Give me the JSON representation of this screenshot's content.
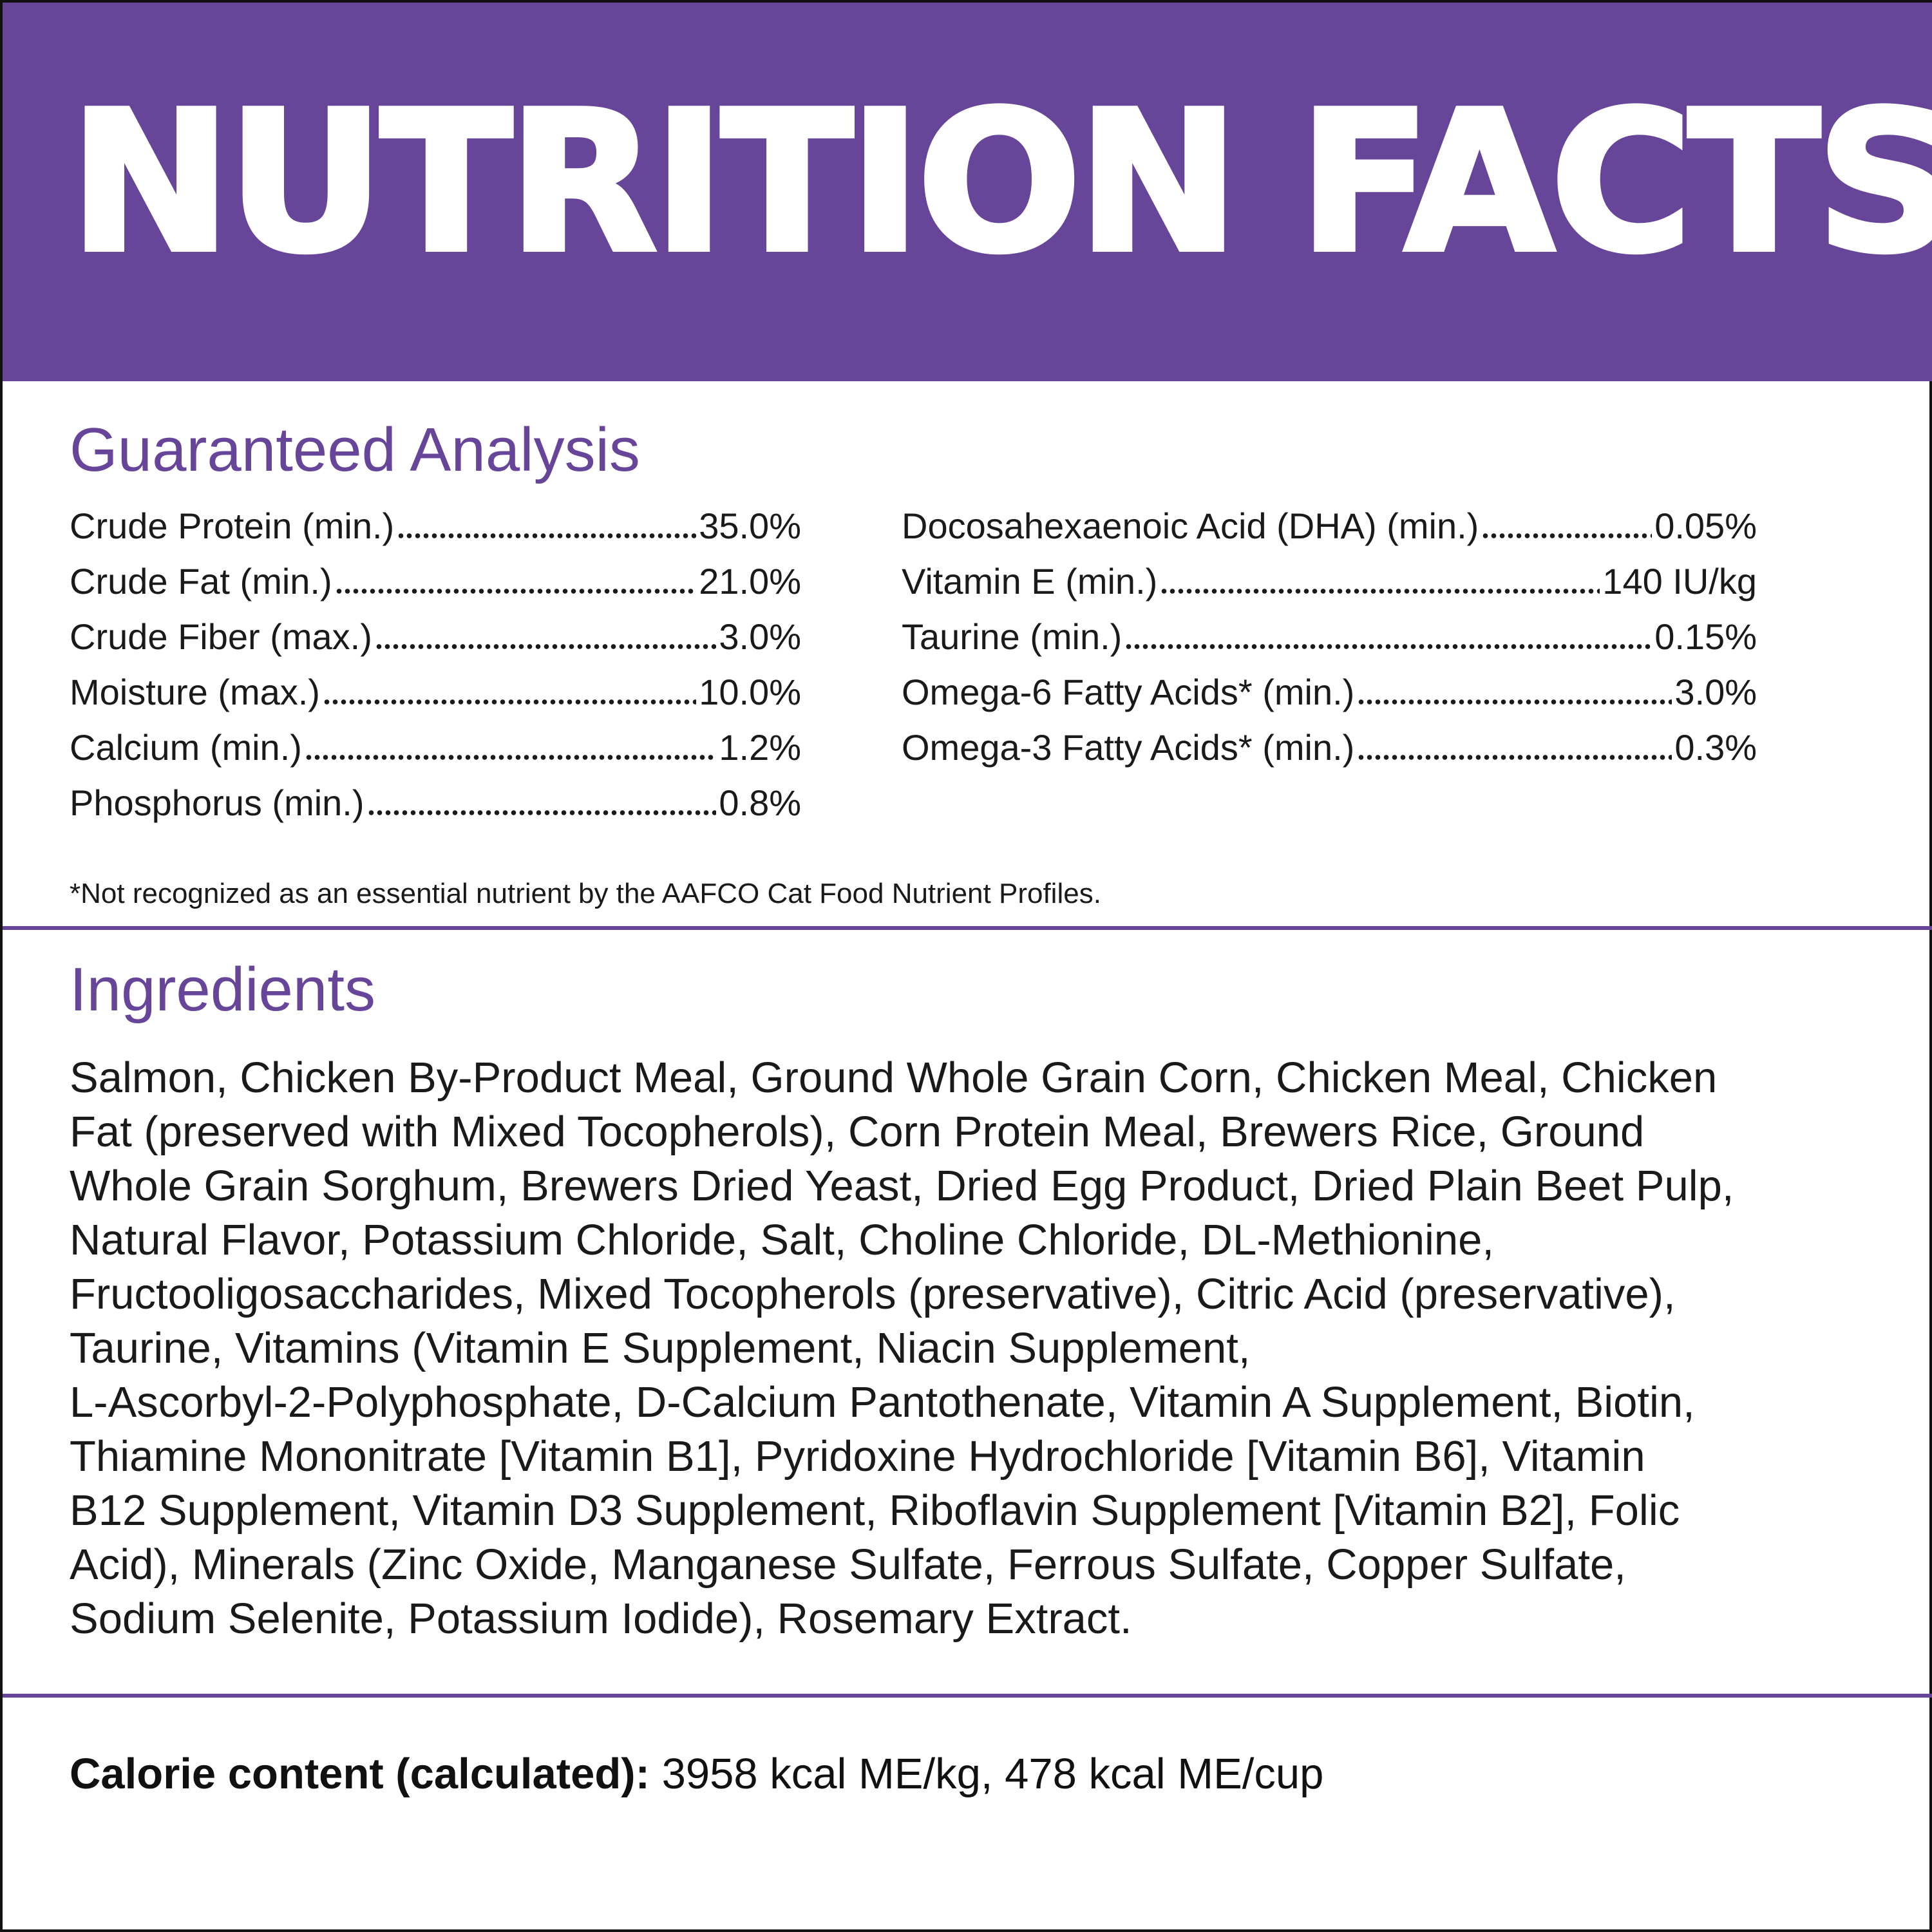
{
  "header": {
    "title": "NUTRITION FACTS",
    "background_color": "#67469a",
    "text_color": "#ffffff"
  },
  "guaranteed_analysis": {
    "heading": "Guaranteed Analysis",
    "left_column": [
      {
        "label": "Crude Protein (min.)",
        "value": "35.0%"
      },
      {
        "label": "Crude Fat (min.)",
        "value": "21.0%"
      },
      {
        "label": "Crude Fiber (max.)",
        "value": "3.0%"
      },
      {
        "label": "Moisture (max.)",
        "value": "10.0%"
      },
      {
        "label": "Calcium (min.)",
        "value": "1.2%"
      },
      {
        "label": "Phosphorus (min.)",
        "value": "0.8%"
      }
    ],
    "right_column": [
      {
        "label": "Docosahexaenoic Acid (DHA) (min.)",
        "value": "0.05%"
      },
      {
        "label": "Vitamin E (min.)",
        "value": "140 IU/kg"
      },
      {
        "label": "Taurine (min.)",
        "value": "0.15%"
      },
      {
        "label": "Omega-6 Fatty Acids* (min.)",
        "value": "3.0%"
      },
      {
        "label": "Omega-3 Fatty Acids* (min.)",
        "value": "0.3%"
      }
    ],
    "footnote": "*Not recognized as an essential nutrient by the AAFCO Cat Food Nutrient Profiles."
  },
  "ingredients": {
    "heading": "Ingredients",
    "lines": [
      "Salmon, Chicken By-Product Meal, Ground Whole Grain Corn, Chicken Meal, Chicken",
      "Fat (preserved with Mixed Tocopherols), Corn Protein Meal, Brewers Rice, Ground",
      "Whole Grain Sorghum, Brewers Dried Yeast, Dried Egg Product, Dried Plain Beet Pulp,",
      "Natural Flavor, Potassium Chloride, Salt, Choline Chloride, DL-Methionine,",
      "Fructooligosaccharides, Mixed Tocopherols (preservative), Citric Acid (preservative),",
      "Taurine, Vitamins (Vitamin E Supplement, Niacin Supplement,",
      "L-Ascorbyl-2-Polyphosphate, D-Calcium Pantothenate, Vitamin A Supplement, Biotin,",
      "Thiamine Mononitrate [Vitamin B1], Pyridoxine Hydrochloride [Vitamin B6], Vitamin",
      "B12 Supplement, Vitamin D3 Supplement, Riboflavin Supplement [Vitamin B2], Folic",
      "Acid), Minerals (Zinc Oxide, Manganese Sulfate, Ferrous Sulfate, Copper Sulfate,",
      "Sodium Selenite, Potassium Iodide), Rosemary Extract."
    ]
  },
  "calorie_content": {
    "label": "Calorie content (calculated):",
    "value": "3958 kcal ME/kg, 478 kcal ME/cup"
  }
}
